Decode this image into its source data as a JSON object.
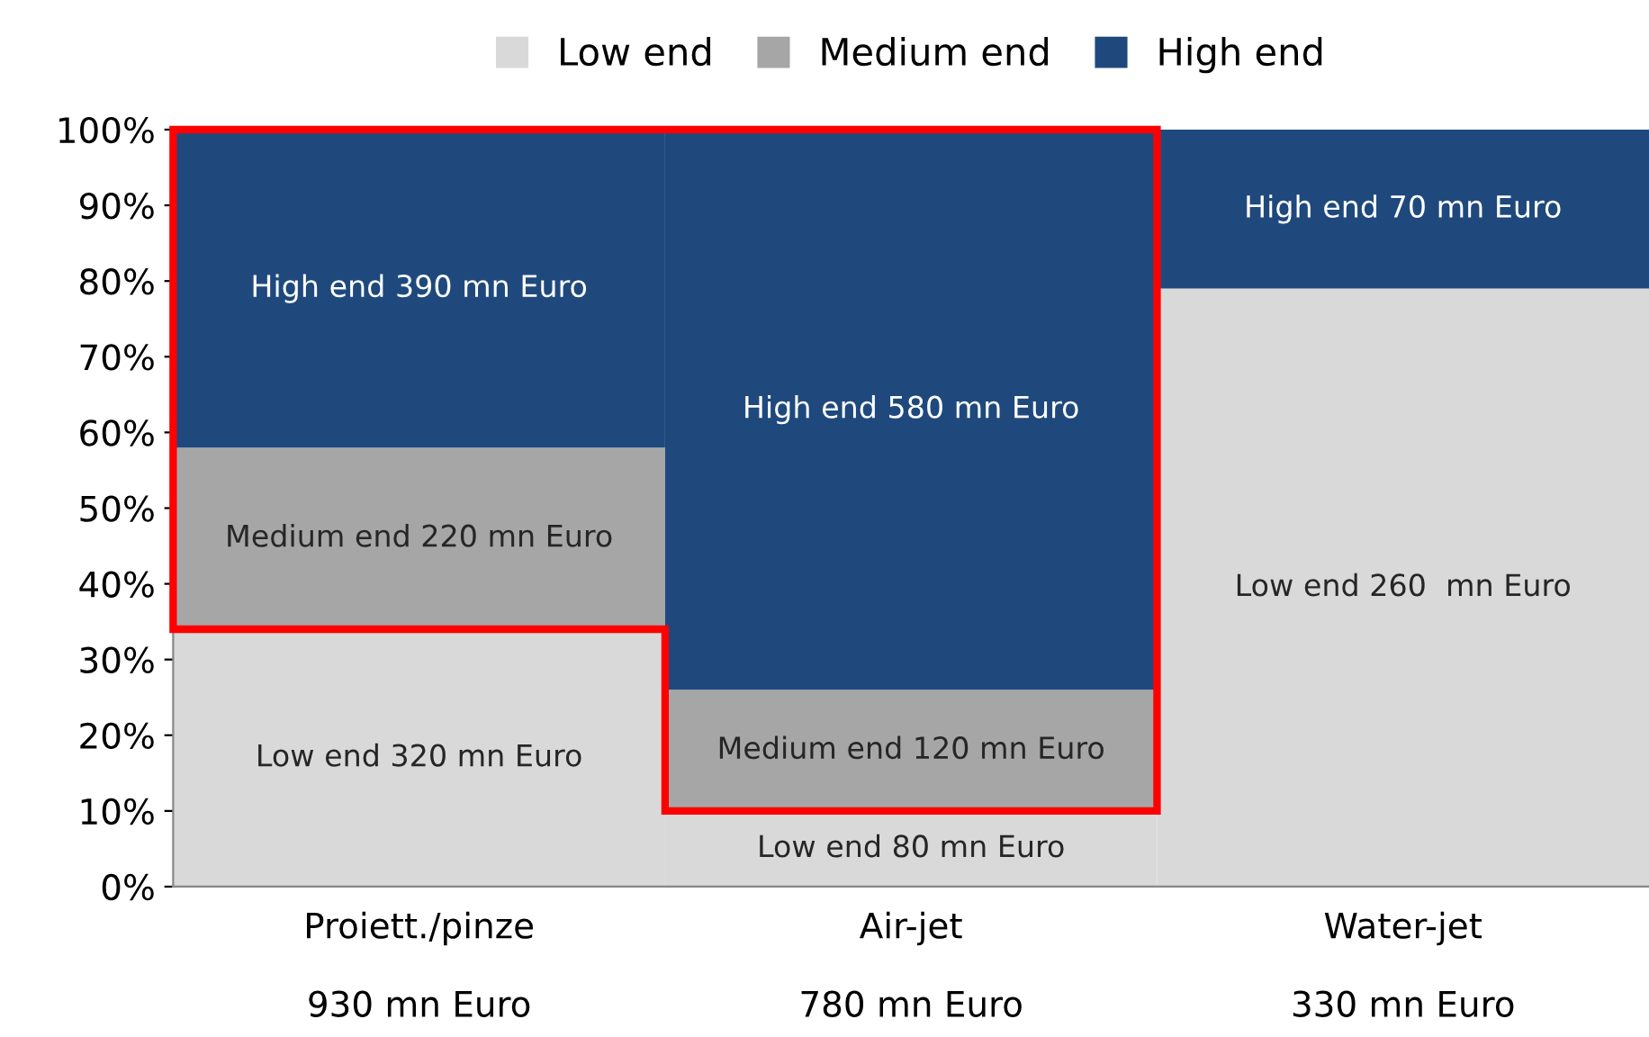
{
  "chart_data": {
    "type": "bar",
    "stacked": true,
    "categories": [
      "Proiett./pinze\n\n930 mn Euro",
      "Air-jet\n\n780 mn Euro",
      "Water-jet\n\n330 mn Euro"
    ],
    "series": [
      {
        "name": "Low end",
        "color": "#d9d9d9",
        "values": [
          34,
          10,
          79
        ],
        "value_labels": [
          "Low end 320 mn Euro",
          "Low end 80 mn Euro",
          "Low end 260  mn Euro"
        ]
      },
      {
        "name": "Medium end",
        "color": "#a6a6a6",
        "values": [
          24,
          16,
          null
        ],
        "value_labels": [
          "Medium end 220 mn Euro",
          "Medium end 120 mn Euro",
          null
        ]
      },
      {
        "name": "High end",
        "color": "#1f497d",
        "values": [
          42,
          74,
          21
        ],
        "value_labels": [
          "High end 390 mn Euro",
          "High end 580 mn Euro",
          "High end 70 mn Euro"
        ]
      }
    ],
    "ylim": [
      0,
      100
    ],
    "yticks": [
      {
        "value": 0,
        "label": "0%"
      },
      {
        "value": 10,
        "label": "10%"
      },
      {
        "value": 20,
        "label": "20%"
      },
      {
        "value": 30,
        "label": "30%"
      },
      {
        "value": 40,
        "label": "40%"
      },
      {
        "value": 50,
        "label": "50%"
      },
      {
        "value": 60,
        "label": "60%"
      },
      {
        "value": 70,
        "label": "70%"
      },
      {
        "value": 80,
        "label": "80%"
      },
      {
        "value": 90,
        "label": "90%"
      },
      {
        "value": 100,
        "label": "100%"
      }
    ],
    "grid": false,
    "legend": "top"
  }
}
